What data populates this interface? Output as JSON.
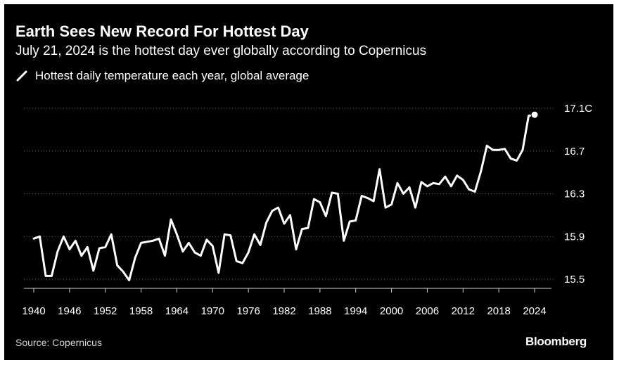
{
  "header": {
    "title": "Earth Sees New Record For Hottest Day",
    "subtitle": "July 21, 2024 is the hottest day ever globally according to Copernicus"
  },
  "footer": {
    "source": "Source: Copernicus",
    "brand": "Bloomberg"
  },
  "colors": {
    "background": "#000000",
    "line": "#ffffff",
    "grid": "#6e6e6e",
    "text": "#ffffff"
  },
  "chart_data": {
    "type": "line",
    "title": "Earth Sees New Record For Hottest Day",
    "subtitle": "July 21, 2024 is the hottest day ever globally according to Copernicus",
    "legend": "Hottest daily temperature each year, global average",
    "xlabel": "",
    "ylabel": "",
    "xlim": [
      1939,
      2025
    ],
    "ylim": [
      15.45,
      17.15
    ],
    "x_ticks": [
      1940,
      1946,
      1952,
      1958,
      1964,
      1970,
      1976,
      1982,
      1988,
      1994,
      2000,
      2006,
      2012,
      2018,
      2024
    ],
    "y_ticks": [
      {
        "value": 15.5,
        "label": "15.5"
      },
      {
        "value": 15.9,
        "label": "15.9"
      },
      {
        "value": 16.3,
        "label": "16.3"
      },
      {
        "value": 16.7,
        "label": "16.7"
      },
      {
        "value": 17.1,
        "label": "17.1C"
      }
    ],
    "grid": "horizontal dotted",
    "series": [
      {
        "name": "Hottest daily temperature each year, global average",
        "x": [
          1940,
          1941,
          1942,
          1943,
          1944,
          1945,
          1946,
          1947,
          1948,
          1949,
          1950,
          1951,
          1952,
          1953,
          1954,
          1955,
          1956,
          1957,
          1958,
          1959,
          1960,
          1961,
          1962,
          1963,
          1964,
          1965,
          1966,
          1967,
          1968,
          1969,
          1970,
          1971,
          1972,
          1973,
          1974,
          1975,
          1976,
          1977,
          1978,
          1979,
          1980,
          1981,
          1982,
          1983,
          1984,
          1985,
          1986,
          1987,
          1988,
          1989,
          1990,
          1991,
          1992,
          1993,
          1994,
          1995,
          1996,
          1997,
          1998,
          1999,
          2000,
          2001,
          2002,
          2003,
          2004,
          2005,
          2006,
          2007,
          2008,
          2009,
          2010,
          2011,
          2012,
          2013,
          2014,
          2015,
          2016,
          2017,
          2018,
          2019,
          2020,
          2021,
          2022,
          2023,
          2024
        ],
        "values": [
          15.88,
          15.9,
          15.53,
          15.53,
          15.76,
          15.9,
          15.78,
          15.86,
          15.72,
          15.8,
          15.58,
          15.79,
          15.8,
          15.92,
          15.63,
          15.57,
          15.49,
          15.7,
          15.84,
          15.85,
          15.86,
          15.88,
          15.72,
          16.06,
          15.92,
          15.76,
          15.84,
          15.75,
          15.72,
          15.87,
          15.81,
          15.56,
          15.92,
          15.91,
          15.67,
          15.65,
          15.75,
          15.92,
          15.82,
          16.03,
          16.14,
          16.17,
          16.02,
          16.1,
          15.78,
          15.97,
          15.98,
          16.25,
          16.22,
          16.09,
          16.31,
          16.3,
          15.86,
          16.04,
          16.05,
          16.28,
          16.26,
          16.23,
          16.53,
          16.17,
          16.2,
          16.4,
          16.3,
          16.36,
          16.17,
          16.41,
          16.37,
          16.4,
          16.39,
          16.46,
          16.37,
          16.47,
          16.43,
          16.34,
          16.32,
          16.51,
          16.75,
          16.71,
          16.71,
          16.72,
          16.63,
          16.61,
          16.71,
          17.03,
          17.04
        ]
      }
    ],
    "highlight": {
      "x": 2024,
      "value": 17.04
    }
  }
}
